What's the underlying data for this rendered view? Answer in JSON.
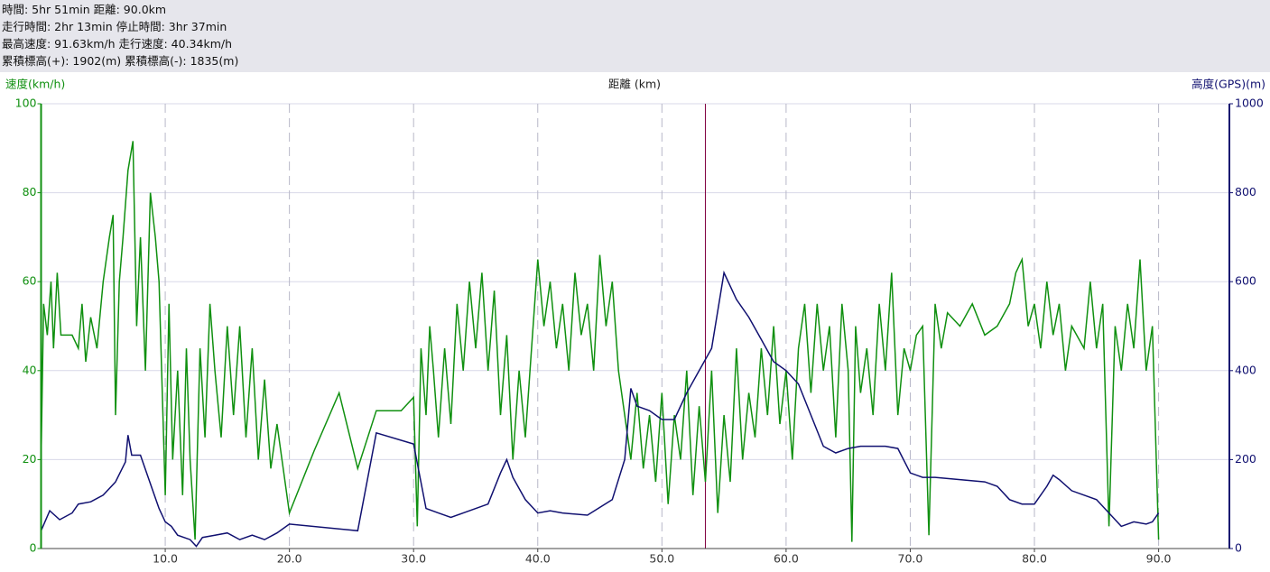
{
  "header": {
    "lines": [
      "時間: 5hr 51min 距離: 90.0km",
      "走行時間: 2hr 13min 停止時間: 3hr 37min",
      "最高速度: 91.63km/h 走行速度: 40.34km/h",
      "累積標高(+): 1902(m) 累積標高(-): 1835(m)"
    ]
  },
  "chart_data": {
    "type": "line",
    "x_label": "距離 (km)",
    "y_label": "速度(km/h)",
    "y2_label": "高度(GPS)(m)",
    "xlim": [
      0,
      95.7
    ],
    "xticks": [
      {
        "value": 10,
        "label": "10.0"
      },
      {
        "value": 20,
        "label": "20.0"
      },
      {
        "value": 30,
        "label": "30.0"
      },
      {
        "value": 40,
        "label": "40.0"
      },
      {
        "value": 50,
        "label": "50.0"
      },
      {
        "value": 60,
        "label": "60.0"
      },
      {
        "value": 70,
        "label": "70.0"
      },
      {
        "value": 80,
        "label": "80.0"
      },
      {
        "value": 90,
        "label": "90.0"
      }
    ],
    "ylim": [
      0,
      100
    ],
    "yticks": [
      0,
      20,
      40,
      60,
      80,
      100
    ],
    "y2lim": [
      0,
      1000
    ],
    "y2ticks": [
      0,
      200,
      400,
      600,
      800,
      1000
    ],
    "grid": true,
    "cursor_x": 53.5,
    "cursor_color": "#800040",
    "series": [
      {
        "name": "速度",
        "color": "#109010",
        "axis": "y",
        "x": [
          0,
          0.2,
          0.5,
          0.8,
          1,
          1.3,
          1.6,
          2.5,
          3,
          3.3,
          3.6,
          4,
          4.5,
          5,
          5.5,
          5.8,
          6,
          6.3,
          6.6,
          7,
          7.4,
          7.7,
          8,
          8.4,
          8.8,
          9.2,
          9.5,
          10,
          10.3,
          10.6,
          11,
          11.4,
          11.7,
          12,
          12.4,
          12.8,
          13.2,
          13.6,
          14,
          14.5,
          15,
          15.5,
          16,
          16.5,
          17,
          17.5,
          18,
          18.5,
          19,
          20,
          22,
          24,
          25.5,
          27,
          29,
          30,
          30.3,
          30.6,
          31,
          31.3,
          31.6,
          32,
          32.5,
          33,
          33.5,
          34,
          34.5,
          35,
          35.5,
          36,
          36.5,
          37,
          37.5,
          38,
          38.5,
          39,
          39.5,
          40,
          40.5,
          41,
          41.5,
          42,
          42.5,
          43,
          43.5,
          44,
          44.5,
          45,
          45.5,
          46,
          46.5,
          47,
          47.5,
          48,
          48.5,
          49,
          49.5,
          50,
          50.5,
          51,
          51.5,
          52,
          52.5,
          53,
          53.5,
          54,
          54.5,
          55,
          55.5,
          56,
          56.5,
          57,
          57.5,
          58,
          58.5,
          59,
          59.5,
          60,
          60.5,
          61,
          61.5,
          62,
          62.5,
          63,
          63.5,
          64,
          64.5,
          65,
          65.3,
          65.6,
          66,
          66.5,
          67,
          67.5,
          68,
          68.5,
          69,
          69.5,
          70,
          70.5,
          71,
          71.5,
          72,
          72.5,
          73,
          74,
          75,
          76,
          77,
          78,
          78.5,
          79,
          79.5,
          80,
          80.5,
          81,
          81.5,
          82,
          82.5,
          83,
          84,
          84.5,
          85,
          85.5,
          86,
          86.5,
          87,
          87.5,
          88,
          88.5,
          89,
          89.5,
          90
        ],
        "values": [
          20,
          55,
          48,
          60,
          45,
          62,
          48,
          48,
          45,
          55,
          42,
          52,
          45,
          60,
          70,
          75,
          30,
          60,
          70,
          85,
          91.6,
          50,
          70,
          40,
          80,
          70,
          60,
          12,
          55,
          20,
          40,
          12,
          45,
          20,
          2,
          45,
          25,
          55,
          40,
          25,
          50,
          30,
          50,
          25,
          45,
          20,
          38,
          18,
          28,
          8,
          22,
          35,
          18,
          31,
          31,
          34,
          5,
          45,
          30,
          50,
          40,
          25,
          45,
          28,
          55,
          40,
          60,
          45,
          62,
          40,
          58,
          30,
          48,
          20,
          40,
          25,
          45,
          65,
          50,
          60,
          45,
          55,
          40,
          62,
          48,
          55,
          40,
          66,
          50,
          60,
          40,
          30,
          20,
          35,
          18,
          30,
          15,
          35,
          10,
          30,
          20,
          40,
          12,
          32,
          15,
          40,
          8,
          30,
          15,
          45,
          20,
          35,
          25,
          45,
          30,
          50,
          28,
          40,
          20,
          45,
          55,
          35,
          55,
          40,
          50,
          25,
          55,
          40,
          1.5,
          50,
          35,
          45,
          30,
          55,
          40,
          62,
          30,
          45,
          40,
          48,
          50,
          3,
          55,
          45,
          53,
          50,
          55,
          48,
          50,
          55,
          62,
          65,
          50,
          55,
          45,
          60,
          48,
          55,
          40,
          50,
          45,
          60,
          45,
          55,
          5,
          50,
          40,
          55,
          45,
          65,
          40,
          50,
          2
        ]
      },
      {
        "name": "高度",
        "color": "#101070",
        "axis": "y2",
        "x": [
          0,
          0.7,
          1.5,
          2.5,
          3,
          4,
          5,
          6,
          6.8,
          7,
          7.3,
          8,
          9,
          9.5,
          10,
          10.5,
          11,
          12,
          12.5,
          13,
          14,
          15,
          16,
          17,
          18,
          19,
          20,
          25.5,
          27,
          30,
          31,
          32,
          33,
          34,
          36,
          37,
          37.5,
          38,
          39,
          40,
          41,
          42,
          44,
          46,
          47,
          47.5,
          48,
          49,
          50,
          51,
          52,
          53,
          54,
          55,
          56,
          57,
          58,
          59,
          60,
          61,
          62,
          63,
          64,
          65,
          66,
          68,
          69,
          70,
          71,
          72,
          74,
          76,
          77,
          78,
          79,
          80,
          81,
          81.5,
          82,
          83,
          84,
          85,
          86,
          87,
          88,
          89,
          89.5,
          90
        ],
        "values": [
          40,
          85,
          65,
          80,
          100,
          105,
          120,
          150,
          195,
          255,
          210,
          210,
          130,
          90,
          60,
          50,
          30,
          20,
          5,
          25,
          30,
          35,
          20,
          30,
          20,
          35,
          55,
          40,
          260,
          235,
          90,
          80,
          70,
          80,
          100,
          170,
          200,
          160,
          110,
          80,
          85,
          80,
          75,
          110,
          200,
          360,
          320,
          310,
          290,
          290,
          350,
          400,
          450,
          620,
          560,
          520,
          470,
          420,
          400,
          370,
          300,
          230,
          215,
          225,
          230,
          230,
          225,
          170,
          160,
          160,
          155,
          150,
          140,
          110,
          100,
          100,
          140,
          165,
          155,
          130,
          120,
          110,
          80,
          50,
          60,
          55,
          60,
          80
        ]
      }
    ]
  }
}
